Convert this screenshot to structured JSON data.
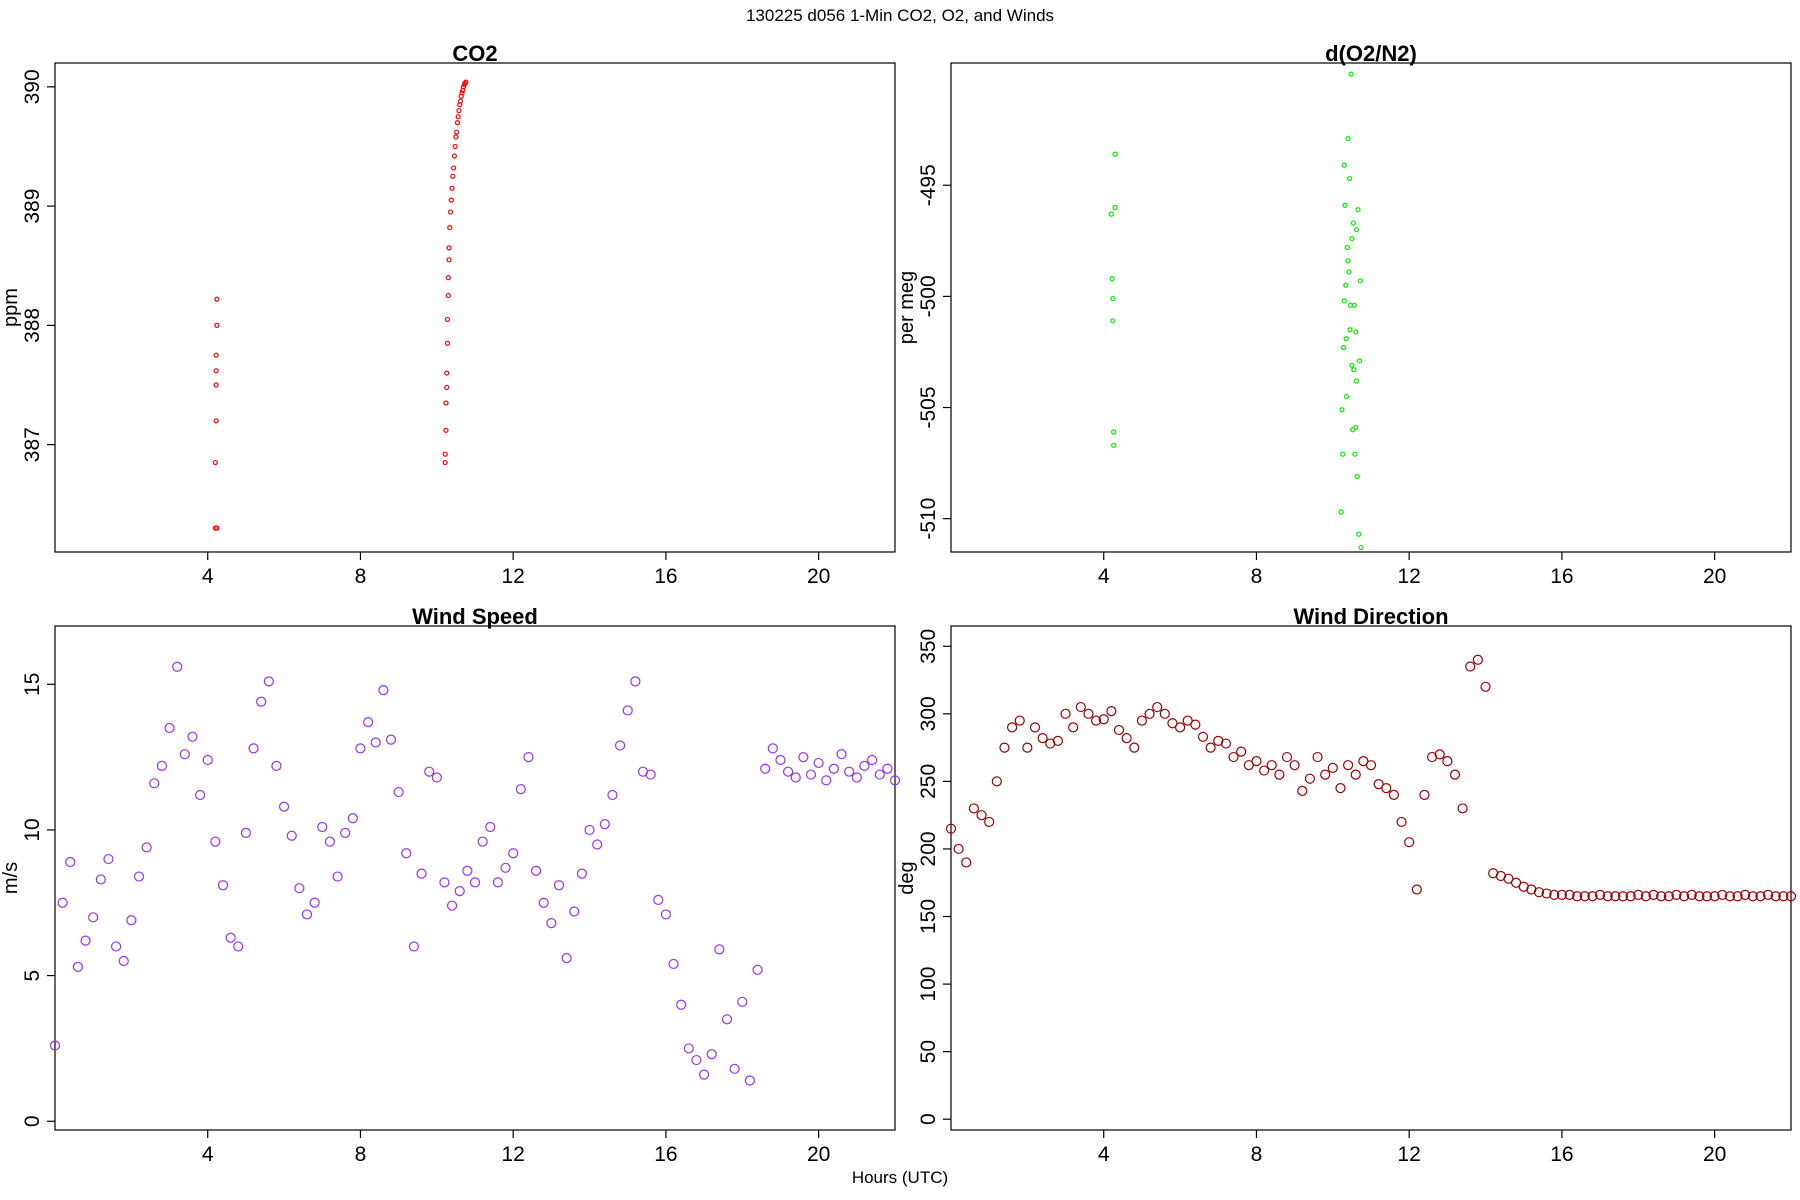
{
  "figure": {
    "title": "130225   d056   1-Min CO2, O2, and Winds",
    "xlabel": "Hours (UTC)"
  },
  "chart_data": [
    {
      "id": "co2",
      "type": "scatter",
      "title": "CO2",
      "xlabel": "",
      "ylabel": "ppm",
      "xlim": [
        0,
        22
      ],
      "ylim": [
        386.1,
        390.2
      ],
      "xticks": [
        4,
        8,
        12,
        16,
        20
      ],
      "yticks": [
        387,
        388,
        389,
        390
      ],
      "color": "#ff0000",
      "series": [
        {
          "x": [
            4.2,
            4.2,
            4.22,
            4.22,
            4.22,
            4.22,
            4.24,
            4.24,
            4.24,
            10.22,
            10.22,
            10.24,
            10.24,
            10.26,
            10.26,
            10.28,
            10.28,
            10.3,
            10.3,
            10.32,
            10.32,
            10.34,
            10.36,
            10.38,
            10.4,
            10.42,
            10.44,
            10.46,
            10.48,
            10.5,
            10.52,
            10.54,
            10.56,
            10.58,
            10.6,
            10.62,
            10.64,
            10.66,
            10.68,
            10.7,
            10.72,
            10.74,
            10.76
          ],
          "y": [
            386.3,
            386.85,
            387.2,
            387.5,
            387.62,
            387.75,
            388.0,
            388.22,
            386.3,
            386.85,
            386.92,
            387.12,
            387.35,
            387.48,
            387.6,
            387.85,
            388.05,
            388.25,
            388.4,
            388.55,
            388.65,
            388.82,
            388.95,
            389.05,
            389.15,
            389.25,
            389.32,
            389.42,
            389.5,
            389.58,
            389.62,
            389.7,
            389.75,
            389.8,
            389.85,
            389.88,
            389.92,
            389.95,
            389.97,
            390.0,
            390.02,
            390.03,
            390.04
          ]
        }
      ]
    },
    {
      "id": "o2",
      "type": "scatter",
      "title": "d(O2/N2)",
      "xlabel": "",
      "ylabel": "per meg",
      "xlim": [
        0,
        22
      ],
      "ylim": [
        -511.5,
        -489.5
      ],
      "xticks": [
        4,
        8,
        12,
        16,
        20
      ],
      "yticks": [
        -510,
        -505,
        -500,
        -495
      ],
      "color": "#00ee00",
      "series": [
        {
          "x": [
            4.2,
            4.22,
            4.24,
            4.24,
            4.26,
            4.26,
            4.3,
            4.3,
            10.22,
            10.24,
            10.26,
            10.28,
            10.3,
            10.32,
            10.34,
            10.36,
            10.38,
            10.4,
            10.42,
            10.44,
            10.46,
            10.48,
            10.5,
            10.52,
            10.54,
            10.56,
            10.58,
            10.6,
            10.62,
            10.64,
            10.66,
            10.68,
            10.7,
            10.72,
            10.74,
            10.4,
            10.5,
            10.6,
            10.3,
            10.45,
            10.55,
            10.35,
            10.62
          ],
          "y": [
            -496.3,
            -499.2,
            -500.1,
            -501.1,
            -506.1,
            -506.7,
            -496.0,
            -493.6,
            -509.7,
            -505.1,
            -507.1,
            -502.3,
            -494.1,
            -495.9,
            -499.5,
            -504.5,
            -497.8,
            -492.9,
            -498.9,
            -494.7,
            -500.4,
            -490.0,
            -503.1,
            -506.0,
            -496.7,
            -500.4,
            -507.1,
            -501.6,
            -503.8,
            -508.1,
            -496.1,
            -510.7,
            -502.9,
            -499.3,
            -511.3,
            -498.4,
            -497.4,
            -505.9,
            -500.2,
            -501.5,
            -503.3,
            -501.9,
            -497.0
          ]
        }
      ]
    },
    {
      "id": "wind-speed",
      "type": "scatter",
      "title": "Wind Speed",
      "xlabel": "",
      "ylabel": "m/s",
      "xlim": [
        0,
        22
      ],
      "ylim": [
        -0.3,
        17
      ],
      "xticks": [
        4,
        8,
        12,
        16,
        20
      ],
      "yticks": [
        0,
        5,
        10,
        15
      ],
      "color": "#9b30ff",
      "series": [
        {
          "x": [
            0.0,
            0.2,
            0.4,
            0.6,
            0.8,
            1.0,
            1.2,
            1.4,
            1.6,
            1.8,
            2.0,
            2.2,
            2.4,
            2.6,
            2.8,
            3.0,
            3.2,
            3.4,
            3.6,
            3.8,
            4.0,
            4.2,
            4.4,
            4.6,
            4.8,
            5.0,
            5.2,
            5.4,
            5.6,
            5.8,
            6.0,
            6.2,
            6.4,
            6.6,
            6.8,
            7.0,
            7.2,
            7.4,
            7.6,
            7.8,
            8.0,
            8.2,
            8.4,
            8.6,
            8.8,
            9.0,
            9.2,
            9.4,
            9.6,
            9.8,
            10.0,
            10.2,
            10.4,
            10.6,
            10.8,
            11.0,
            11.2,
            11.4,
            11.6,
            11.8,
            12.0,
            12.2,
            12.4,
            12.6,
            12.8,
            13.0,
            13.2,
            13.4,
            13.6,
            13.8,
            14.0,
            14.2,
            14.4,
            14.6,
            14.8,
            15.0,
            15.2,
            15.4,
            15.6,
            15.8,
            16.0,
            16.2,
            16.4,
            16.6,
            16.8,
            17.0,
            17.2,
            17.4,
            17.6,
            17.8,
            18.0,
            18.2,
            18.4,
            18.6,
            18.8,
            19.0,
            19.2,
            19.4,
            19.6,
            19.8,
            20.0,
            20.2,
            20.4,
            20.6,
            20.8,
            21.0,
            21.2,
            21.4,
            21.6,
            21.8,
            22.0
          ],
          "y": [
            2.6,
            7.5,
            8.9,
            5.3,
            6.2,
            7.0,
            8.3,
            9.0,
            6.0,
            5.5,
            6.9,
            8.4,
            9.4,
            11.6,
            12.2,
            13.5,
            15.6,
            12.6,
            13.2,
            11.2,
            12.4,
            9.6,
            8.1,
            6.3,
            6.0,
            9.9,
            12.8,
            14.4,
            15.1,
            12.2,
            10.8,
            9.8,
            8.0,
            7.1,
            7.5,
            10.1,
            9.6,
            8.4,
            9.9,
            10.4,
            12.8,
            13.7,
            13.0,
            14.8,
            13.1,
            11.3,
            9.2,
            6.0,
            8.5,
            12.0,
            11.8,
            8.2,
            7.4,
            7.9,
            8.6,
            8.2,
            9.6,
            10.1,
            8.2,
            8.7,
            9.2,
            11.4,
            12.5,
            8.6,
            7.5,
            6.8,
            8.1,
            5.6,
            7.2,
            8.5,
            10.0,
            9.5,
            10.2,
            11.2,
            12.9,
            14.1,
            15.1,
            12.0,
            11.9,
            7.6,
            7.1,
            5.4,
            4.0,
            2.5,
            2.1,
            1.6,
            2.3,
            5.9,
            3.5,
            1.8,
            4.1,
            1.4,
            5.2,
            12.1,
            12.8,
            12.4,
            12.0,
            11.8,
            12.5,
            11.9,
            12.3,
            11.7,
            12.1,
            12.6,
            12.0,
            11.8,
            12.2,
            12.4,
            11.9,
            12.1,
            11.7
          ]
        }
      ]
    },
    {
      "id": "wind-direction",
      "type": "scatter",
      "title": "Wind Direction",
      "xlabel": "",
      "ylabel": "deg",
      "xlim": [
        0,
        22
      ],
      "ylim": [
        -8,
        365
      ],
      "xticks": [
        4,
        8,
        12,
        16,
        20
      ],
      "yticks": [
        0,
        50,
        100,
        150,
        200,
        250,
        300,
        350
      ],
      "color": "#9b0000",
      "series": [
        {
          "x": [
            0.0,
            0.2,
            0.4,
            0.6,
            0.8,
            1.0,
            1.2,
            1.4,
            1.6,
            1.8,
            2.0,
            2.2,
            2.4,
            2.6,
            2.8,
            3.0,
            3.2,
            3.4,
            3.6,
            3.8,
            4.0,
            4.2,
            4.4,
            4.6,
            4.8,
            5.0,
            5.2,
            5.4,
            5.6,
            5.8,
            6.0,
            6.2,
            6.4,
            6.6,
            6.8,
            7.0,
            7.2,
            7.4,
            7.6,
            7.8,
            8.0,
            8.2,
            8.4,
            8.6,
            8.8,
            9.0,
            9.2,
            9.4,
            9.6,
            9.8,
            10.0,
            10.2,
            10.4,
            10.6,
            10.8,
            11.0,
            11.2,
            11.4,
            11.6,
            11.8,
            12.0,
            12.2,
            12.4,
            12.6,
            12.8,
            13.0,
            13.2,
            13.4,
            13.6,
            13.8,
            14.0,
            14.2,
            14.4,
            14.6,
            14.8,
            15.0,
            15.2,
            15.4,
            15.6,
            15.8,
            16.0,
            16.2,
            16.4,
            16.6,
            16.8,
            17.0,
            17.2,
            17.4,
            17.6,
            17.8,
            18.0,
            18.2,
            18.4,
            18.6,
            18.8,
            19.0,
            19.2,
            19.4,
            19.6,
            19.8,
            20.0,
            20.2,
            20.4,
            20.6,
            20.8,
            21.0,
            21.2,
            21.4,
            21.6,
            21.8,
            22.0
          ],
          "y": [
            215,
            200,
            190,
            230,
            225,
            220,
            250,
            275,
            290,
            295,
            275,
            290,
            282,
            278,
            280,
            300,
            290,
            305,
            300,
            295,
            296,
            302,
            288,
            282,
            275,
            295,
            300,
            305,
            300,
            293,
            290,
            295,
            292,
            283,
            275,
            280,
            278,
            268,
            272,
            262,
            265,
            258,
            262,
            255,
            268,
            262,
            243,
            252,
            268,
            255,
            260,
            245,
            262,
            255,
            265,
            262,
            248,
            245,
            240,
            220,
            205,
            170,
            240,
            268,
            270,
            265,
            255,
            230,
            335,
            340,
            320,
            182,
            180,
            178,
            175,
            172,
            170,
            168,
            167,
            166,
            166,
            166,
            165,
            165,
            165,
            166,
            165,
            165,
            165,
            165,
            166,
            165,
            166,
            165,
            165,
            166,
            165,
            166,
            165,
            165,
            165,
            166,
            165,
            165,
            166,
            165,
            165,
            166,
            165,
            165,
            165
          ]
        }
      ]
    }
  ]
}
